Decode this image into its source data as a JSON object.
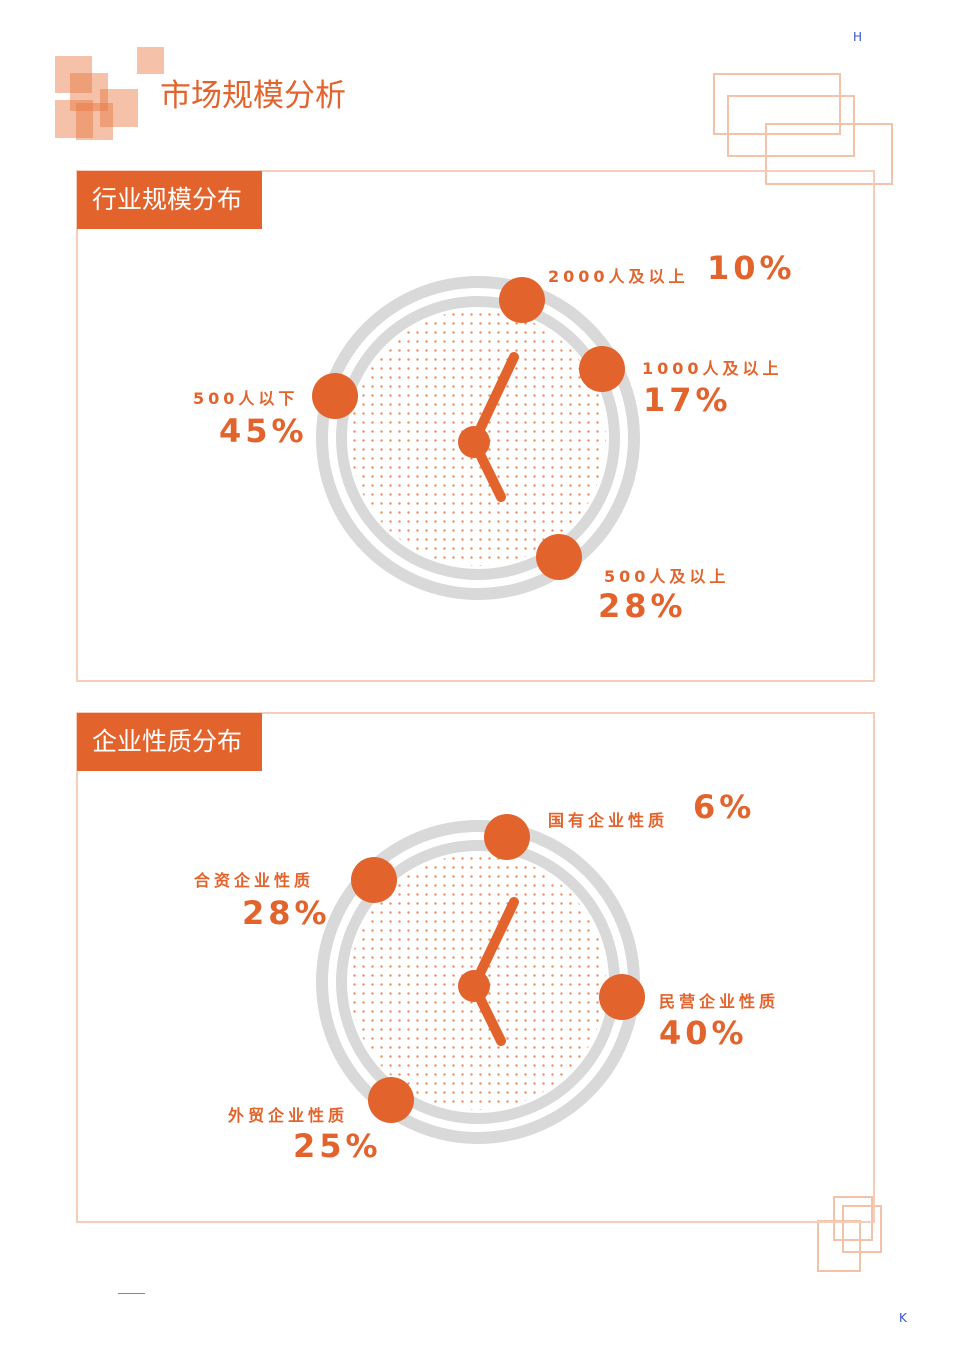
{
  "page": {
    "title": "市场规模分析",
    "corner_top": "H",
    "corner_bottom": "K"
  },
  "accent": "#e2632c",
  "chart_data": [
    {
      "type": "pie",
      "title": "行业规模分布",
      "categories": [
        "2000人及以上",
        "1000人及以上",
        "500人以下",
        "500人及以上"
      ],
      "values": [
        10,
        17,
        45,
        28
      ],
      "value_labels": [
        "10%",
        "17%",
        "45%",
        "28%"
      ]
    },
    {
      "type": "pie",
      "title": "企业性质分布",
      "categories": [
        "国有企业性质",
        "民营企业性质",
        "合资企业性质",
        "外贸企业性质"
      ],
      "values": [
        6,
        40,
        28,
        25
      ],
      "value_labels": [
        "6%",
        "40%",
        "28%",
        "25%"
      ]
    }
  ]
}
